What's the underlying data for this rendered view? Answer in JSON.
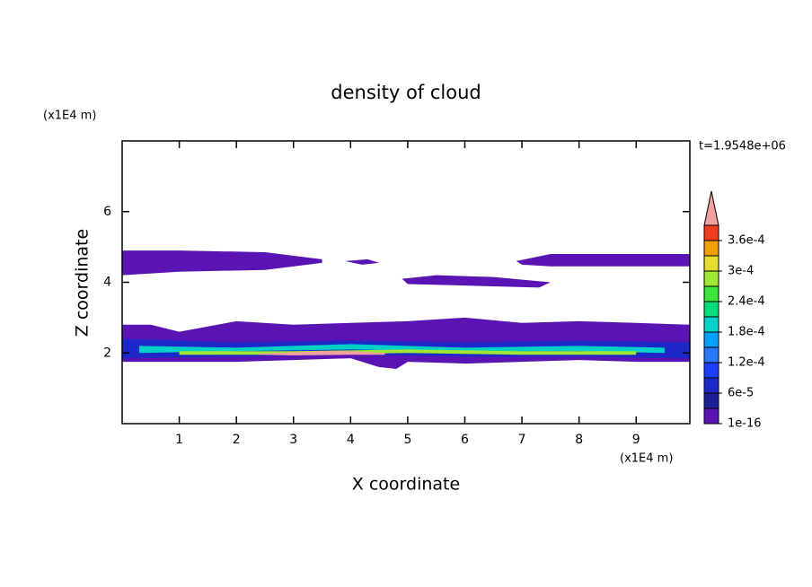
{
  "chart_data": {
    "type": "contour",
    "title": "density of cloud",
    "x_label": "X coordinate",
    "y_label": "Z coordinate",
    "x_unit": "(x1E4 m)",
    "y_unit": "(x1E4 m)",
    "time_label": "t=1.9548e+06",
    "xlim": [
      0,
      9.94
    ],
    "ylim": [
      0,
      8
    ],
    "xticks": [
      1,
      2,
      3,
      4,
      5,
      6,
      7,
      8,
      9
    ],
    "yticks": [
      2,
      4,
      6
    ],
    "colorbar": {
      "levels": [
        1e-16,
        3e-05,
        6e-05,
        9e-05,
        0.00012,
        0.00015,
        0.00018,
        0.00021,
        0.00024,
        0.00027,
        0.0003,
        0.00033,
        0.00036,
        0.00039
      ],
      "colors": [
        "#5a14b4",
        "#1e1e96",
        "#1e28c8",
        "#1e3cff",
        "#2878ff",
        "#00a0ff",
        "#00d2c8",
        "#00dc78",
        "#3ce63c",
        "#a0e632",
        "#e6dc32",
        "#f0a000",
        "#f03c1e",
        "#f0a0a0"
      ],
      "ticks": [
        {
          "value": 1e-16,
          "label": "1e-16"
        },
        {
          "value": 6e-05,
          "label": "6e-5"
        },
        {
          "value": 0.00012,
          "label": "1.2e-4"
        },
        {
          "value": 0.00018,
          "label": "1.8e-4"
        },
        {
          "value": 0.00024,
          "label": "2.4e-4"
        },
        {
          "value": 0.0003,
          "label": "3e-4"
        },
        {
          "value": 0.00036,
          "label": "3.6e-4"
        }
      ]
    },
    "regions": [
      {
        "value": 1e-16,
        "x": [
          0,
          0,
          1.0,
          2.5,
          3.5,
          3.5,
          2.5,
          1.0,
          0.3
        ],
        "y": [
          4.9,
          4.2,
          4.3,
          4.35,
          4.55,
          4.65,
          4.85,
          4.9,
          4.9
        ]
      },
      {
        "value": 1e-16,
        "x": [
          3.9,
          4.3,
          4.5,
          4.2
        ],
        "y": [
          4.6,
          4.65,
          4.55,
          4.5
        ]
      },
      {
        "value": 1e-16,
        "x": [
          6.9,
          7.5,
          9.94,
          9.94,
          7.5,
          7.0
        ],
        "y": [
          4.6,
          4.8,
          4.8,
          4.45,
          4.45,
          4.5
        ]
      },
      {
        "value": 1e-16,
        "x": [
          4.9,
          5.5,
          6.5,
          7.5,
          7.3,
          6.2,
          5.0
        ],
        "y": [
          4.1,
          4.2,
          4.15,
          4.0,
          3.85,
          3.9,
          3.95
        ]
      },
      {
        "value": 1e-16,
        "x": [
          0,
          0.5,
          1,
          2,
          3,
          4,
          5,
          6,
          7,
          8,
          9,
          9.94,
          9.94,
          9,
          8,
          7,
          6,
          5,
          4.8,
          4.5,
          4,
          3,
          2,
          1,
          0
        ],
        "y": [
          2.8,
          2.8,
          2.6,
          2.9,
          2.8,
          2.85,
          2.9,
          3.0,
          2.85,
          2.9,
          2.85,
          2.8,
          1.75,
          1.75,
          1.8,
          1.75,
          1.7,
          1.75,
          1.55,
          1.6,
          1.85,
          1.8,
          1.75,
          1.75,
          1.75
        ]
      },
      {
        "value": 6e-05,
        "x": [
          0,
          2,
          4,
          6,
          8,
          9.94,
          9.94,
          8,
          6,
          4,
          2,
          0
        ],
        "y": [
          2.4,
          2.3,
          2.35,
          2.3,
          2.35,
          2.3,
          1.85,
          1.9,
          1.9,
          1.95,
          1.9,
          1.85
        ]
      },
      {
        "value": 0.00018,
        "x": [
          0.3,
          2,
          4,
          6,
          8,
          9.5,
          9.5,
          8,
          6,
          4,
          2,
          0.3
        ],
        "y": [
          2.2,
          2.15,
          2.25,
          2.15,
          2.2,
          2.15,
          2.0,
          2.05,
          2.05,
          2.1,
          2.05,
          2.0
        ]
      },
      {
        "value": 0.00027,
        "x": [
          1,
          3,
          5,
          7,
          9,
          9,
          7,
          5,
          3,
          1
        ],
        "y": [
          2.05,
          2.05,
          2.1,
          2.05,
          2.05,
          1.95,
          1.95,
          2.0,
          1.95,
          1.95
        ]
      },
      {
        "value": 0.00042,
        "x": [
          2.4,
          3,
          3.5,
          4,
          4.6,
          4.6,
          4,
          3,
          2.4
        ],
        "y": [
          1.98,
          2.02,
          2.05,
          2.05,
          2.0,
          1.95,
          1.95,
          1.93,
          1.95
        ]
      }
    ]
  }
}
